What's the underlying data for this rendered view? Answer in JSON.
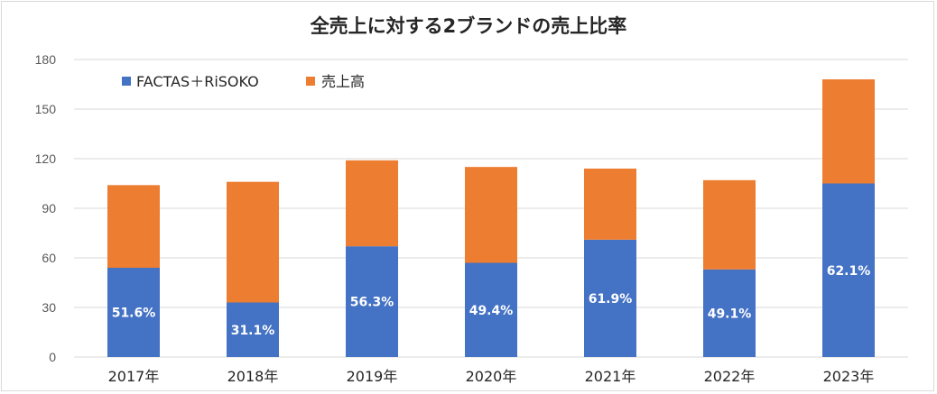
{
  "chart_data": {
    "type": "bar",
    "stacked": true,
    "title": "全売上に対する2ブランドの売上比率",
    "categories": [
      "2017年",
      "2018年",
      "2019年",
      "2020年",
      "2021年",
      "2022年",
      "2023年"
    ],
    "series": [
      {
        "name": "FACTAS＋RiSOKO",
        "color": "#4472c4",
        "values": [
          54,
          33,
          67,
          57,
          71,
          53,
          105
        ]
      },
      {
        "name": "売上高",
        "color": "#ed7d31",
        "values": [
          50,
          73,
          52,
          58,
          43,
          54,
          63
        ]
      }
    ],
    "data_labels": [
      "51.6%",
      "31.1%",
      "56.3%",
      "49.4%",
      "61.9%",
      "49.1%",
      "62.1%"
    ],
    "ylim": [
      0,
      180
    ],
    "yticks": [
      0,
      30,
      60,
      90,
      120,
      150,
      180
    ],
    "grid": true,
    "legend_position": "top-left"
  }
}
